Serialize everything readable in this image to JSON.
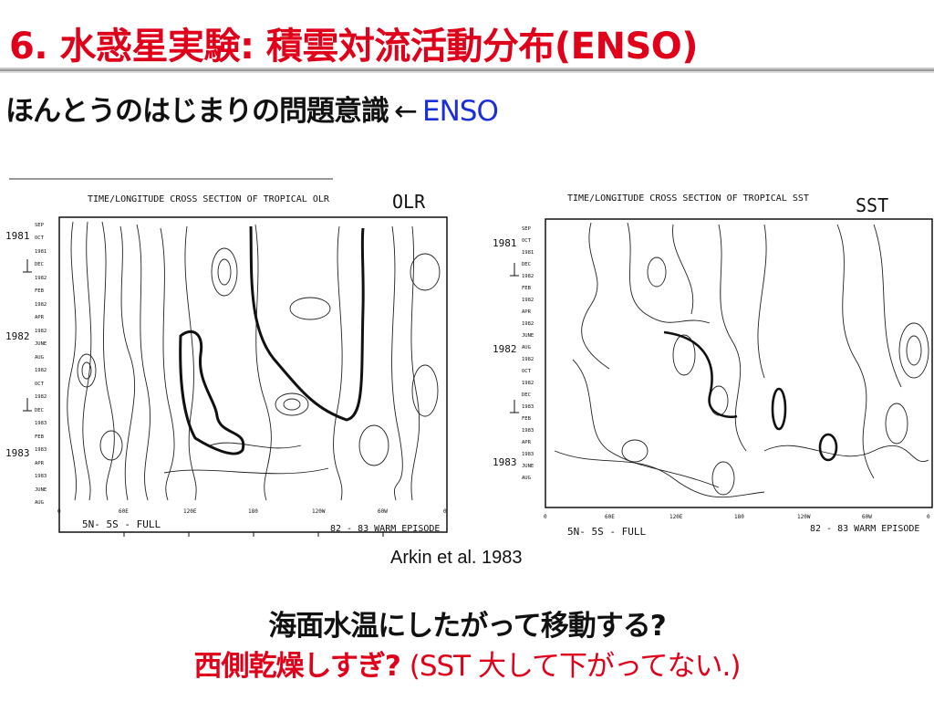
{
  "slide": {
    "title": "6. 水惑星実験: 積雲対流活動分布(ENSO)",
    "subtitle_text": "ほんとうのはじまりの問題意識",
    "subtitle_arrow": "←",
    "subtitle_highlight": "ENSO",
    "citation": "Arkin et al. 1983",
    "question_line1": "海面水温にしたがって移動する?",
    "question_line2_a": "西側乾燥しすぎ?",
    "question_line2_b": "(SST 大して下がってない.)",
    "colors": {
      "title": "#e0001a",
      "highlight": "#1b2fd6",
      "text": "#111111"
    }
  },
  "figures": {
    "olr": {
      "heading": "TIME/LONGITUDE CROSS SECTION OF TROPICAL OLR",
      "handwritten_label": "OLR",
      "footer_left": "5N- 5S  -   FULL",
      "footer_right": "82 - 83 WARM EPISODE",
      "year_labels": [
        "1981",
        "1982",
        "1983"
      ],
      "month_labels": [
        "SEP",
        "OCT",
        "1981",
        "DEC",
        "1982",
        "FEB",
        "1982",
        "APR",
        "1982",
        "JUNE",
        "AUG",
        "1982",
        "OCT",
        "1982",
        "DEC",
        "1983",
        "FEB",
        "1983",
        "APR",
        "1983",
        "JUNE",
        "AUG"
      ],
      "lon_labels": [
        "0",
        "60E",
        "120E",
        "180",
        "120W",
        "60W",
        "0"
      ]
    },
    "sst": {
      "heading": "TIME/LONGITUDE CROSS SECTION OF TROPICAL SST",
      "handwritten_label": "SST",
      "footer_left": "5N- 5S  -   FULL",
      "footer_right": "82 - 83 WARM EPISODE",
      "year_labels": [
        "1981",
        "1982",
        "1983"
      ],
      "month_labels": [
        "SEP",
        "OCT",
        "1981",
        "DEC",
        "1982",
        "FEB",
        "1982",
        "APR",
        "1982",
        "JUNE",
        "AUG",
        "1982",
        "OCT",
        "1982",
        "DEC",
        "1983",
        "FEB",
        "1983",
        "APR",
        "1983",
        "JUNE",
        "AUG"
      ],
      "lon_labels": [
        "0",
        "60E",
        "120E",
        "180",
        "120W",
        "60W",
        "0"
      ]
    }
  }
}
